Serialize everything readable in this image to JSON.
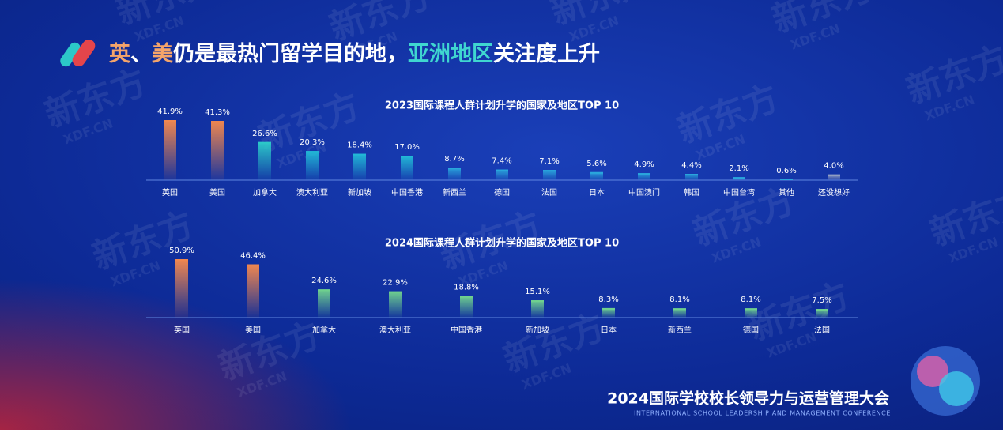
{
  "headline": [
    "英",
    "、",
    "美",
    "仍是最热门留学目的地，",
    "亚洲地区",
    "关注度上升"
  ],
  "footer": {
    "title": "2024国际学校校长领导力与运营管理大会",
    "subtitle": "INTERNATIONAL SCHOOL LEADERSHIP AND MANAGEMENT CONFERENCE"
  },
  "watermark": {
    "brand": "新东方",
    "domain": "XDF.CN"
  },
  "chart_data": [
    {
      "type": "bar",
      "title": "2023国际课程人群计划升学的国家及地区TOP 10",
      "categories": [
        "英国",
        "美国",
        "加拿大",
        "澳大利亚",
        "新加坡",
        "中国香港",
        "新西兰",
        "德国",
        "法国",
        "日本",
        "中国澳门",
        "韩国",
        "中国台湾",
        "其他",
        "还没想好"
      ],
      "values": [
        41.9,
        41.3,
        26.6,
        20.3,
        18.4,
        17.0,
        8.7,
        7.4,
        7.1,
        5.6,
        4.9,
        4.4,
        2.1,
        0.6,
        4.0
      ],
      "value_labels": [
        "41.9%",
        "41.3%",
        "26.6%",
        "20.3%",
        "18.4%",
        "17.0%",
        "8.7%",
        "7.4%",
        "7.1%",
        "5.6%",
        "4.9%",
        "4.4%",
        "2.1%",
        "0.6%",
        "4.0%"
      ],
      "colors": [
        "#f0874f",
        "#f0874f",
        "#2cc8c8",
        "#22b8d6",
        "#22b8d6",
        "#22b8d6",
        "#2aa6dc",
        "#2aa6dc",
        "#2aa6dc",
        "#2aa6dc",
        "#2aa6dc",
        "#2aa6dc",
        "#2aa6dc",
        "#2aa6dc",
        "#9aa6c4"
      ]
    },
    {
      "type": "bar",
      "title": "2024国际课程人群计划升学的国家及地区TOP 10",
      "categories": [
        "英国",
        "美国",
        "加拿大",
        "澳大利亚",
        "中国香港",
        "新加坡",
        "日本",
        "新西兰",
        "德国",
        "法国"
      ],
      "values": [
        50.9,
        46.4,
        24.6,
        22.9,
        18.8,
        15.1,
        8.3,
        8.1,
        8.1,
        7.5
      ],
      "value_labels": [
        "50.9%",
        "46.4%",
        "24.6%",
        "22.9%",
        "18.8%",
        "15.1%",
        "8.3%",
        "8.1%",
        "8.1%",
        "7.5%"
      ],
      "colors": [
        "#f0874f",
        "#f0874f",
        "#6fd08e",
        "#6fd08e",
        "#6fd08e",
        "#6fd08e",
        "#6fd08e",
        "#6fd08e",
        "#6fd08e",
        "#6fd08e"
      ]
    }
  ]
}
